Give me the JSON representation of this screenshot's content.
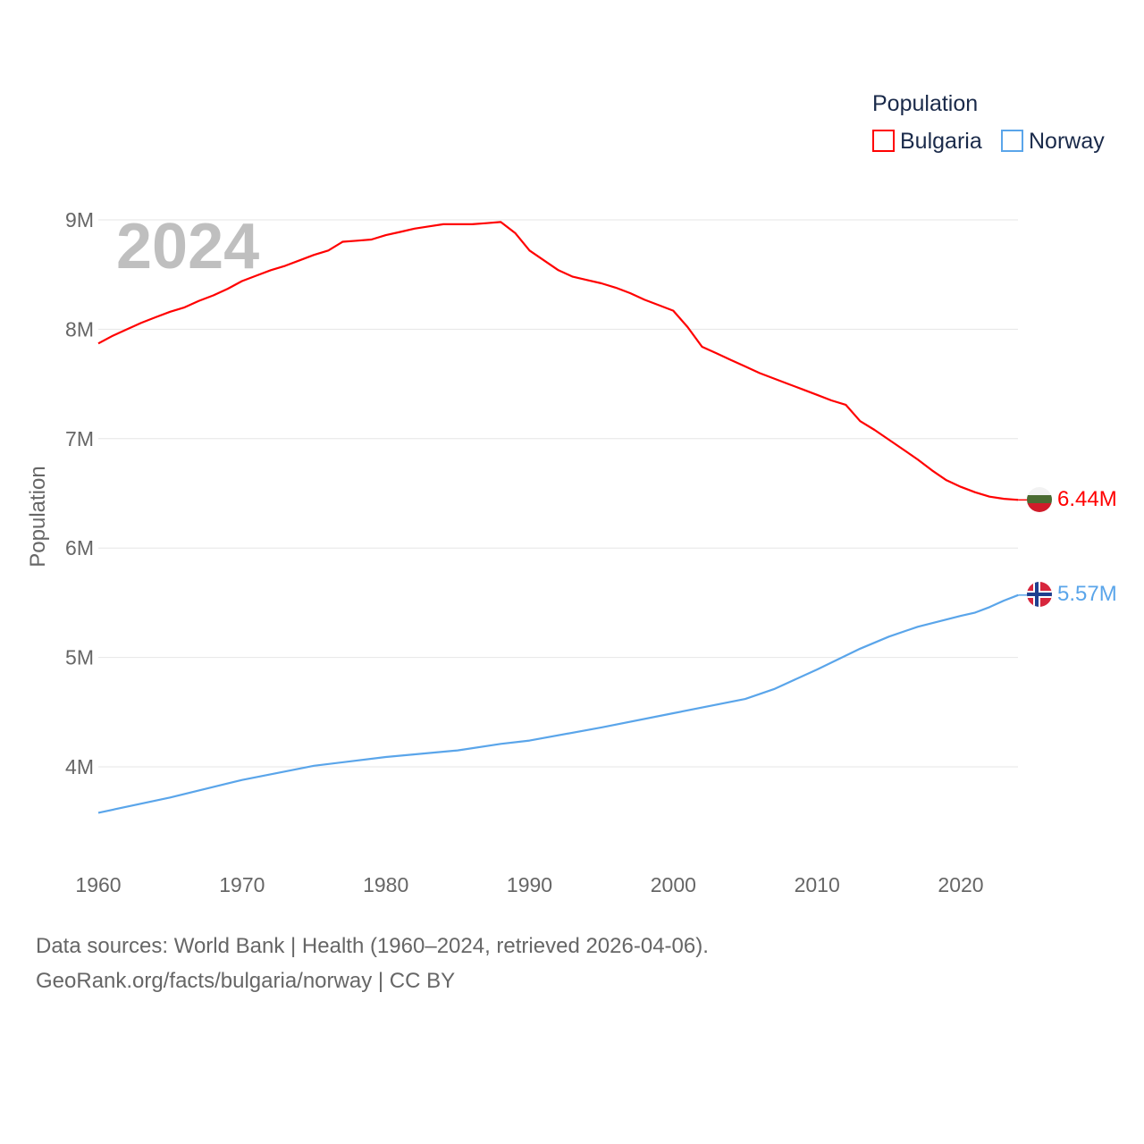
{
  "chart_data": {
    "type": "line",
    "ylabel": "Population",
    "xlabel": "",
    "year_label": "2024",
    "legend": {
      "title": "Population",
      "position": "top-right"
    },
    "xlim": [
      1960,
      2024
    ],
    "ylim": [
      3.5,
      9.2
    ],
    "x_ticks": [
      1960,
      1970,
      1980,
      1990,
      2000,
      2010,
      2020
    ],
    "y_ticks": [
      4,
      5,
      6,
      7,
      8,
      9
    ],
    "y_tick_labels": [
      "4M",
      "5M",
      "6M",
      "7M",
      "8M",
      "9M"
    ],
    "grid": true,
    "series": [
      {
        "name": "Bulgaria",
        "color": "#ff0000",
        "end_label": "6.44M",
        "flag": "bulgaria-flag",
        "x": [
          1960,
          1961,
          1962,
          1963,
          1964,
          1965,
          1966,
          1967,
          1968,
          1969,
          1970,
          1971,
          1972,
          1973,
          1974,
          1975,
          1976,
          1977,
          1978,
          1979,
          1980,
          1981,
          1982,
          1983,
          1984,
          1985,
          1986,
          1987,
          1988,
          1989,
          1990,
          1991,
          1992,
          1993,
          1994,
          1995,
          1996,
          1997,
          1998,
          1999,
          2000,
          2001,
          2002,
          2003,
          2004,
          2005,
          2006,
          2007,
          2008,
          2009,
          2010,
          2011,
          2012,
          2013,
          2014,
          2015,
          2016,
          2017,
          2018,
          2019,
          2020,
          2021,
          2022,
          2023,
          2024
        ],
        "y": [
          7.87,
          7.94,
          8.0,
          8.06,
          8.11,
          8.16,
          8.2,
          8.26,
          8.31,
          8.37,
          8.44,
          8.49,
          8.54,
          8.58,
          8.63,
          8.68,
          8.72,
          8.8,
          8.81,
          8.82,
          8.86,
          8.89,
          8.92,
          8.94,
          8.96,
          8.96,
          8.96,
          8.97,
          8.98,
          8.88,
          8.72,
          8.63,
          8.54,
          8.48,
          8.45,
          8.42,
          8.38,
          8.33,
          8.27,
          8.22,
          8.17,
          8.02,
          7.84,
          7.78,
          7.72,
          7.66,
          7.6,
          7.55,
          7.5,
          7.45,
          7.4,
          7.35,
          7.31,
          7.16,
          7.08,
          6.99,
          6.9,
          6.81,
          6.71,
          6.62,
          6.56,
          6.51,
          6.47,
          6.45,
          6.44
        ]
      },
      {
        "name": "Norway",
        "color": "#5aa5ea",
        "end_label": "5.57M",
        "flag": "norway-flag",
        "x": [
          1960,
          1965,
          1970,
          1975,
          1980,
          1985,
          1988,
          1990,
          1995,
          2000,
          2005,
          2007,
          2010,
          2013,
          2015,
          2017,
          2020,
          2021,
          2022,
          2023,
          2024
        ],
        "y": [
          3.58,
          3.72,
          3.88,
          4.01,
          4.09,
          4.15,
          4.21,
          4.24,
          4.36,
          4.49,
          4.62,
          4.71,
          4.89,
          5.08,
          5.19,
          5.28,
          5.38,
          5.41,
          5.46,
          5.52,
          5.57
        ]
      }
    ]
  },
  "footer": {
    "line1": "Data sources: World Bank | Health (1960–2024, retrieved 2026-04-06).",
    "line2": "GeoRank.org/facts/bulgaria/norway | CC BY"
  }
}
